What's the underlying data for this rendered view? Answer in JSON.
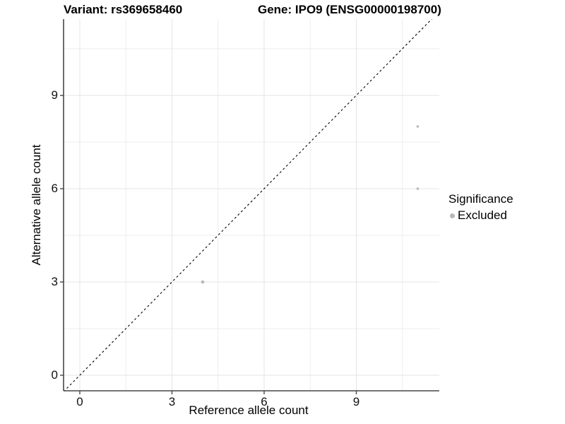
{
  "chart_data": {
    "type": "scatter",
    "title_left": "Variant: rs369658460",
    "title_right": "Gene: IPO9 (ENSG00000198700)",
    "xlabel": "Reference allele count",
    "ylabel": "Alternative allele count",
    "x_ticks": [
      0,
      3,
      6,
      9
    ],
    "y_ticks": [
      0,
      3,
      6,
      9
    ],
    "x_minor_ticks": [
      1.5,
      4.5,
      7.5,
      10.5
    ],
    "y_minor_ticks": [
      1.5,
      4.5,
      7.5,
      10.5
    ],
    "xlim": [
      -0.55,
      11.7
    ],
    "ylim": [
      -0.5,
      11.45
    ],
    "grid": true,
    "identity_line": {
      "slope": 1,
      "intercept": 0,
      "style": "dashed",
      "color": "#000000"
    },
    "points": [
      {
        "x": 4,
        "y": 3,
        "significance": "Excluded",
        "r": 2.3
      },
      {
        "x": 11,
        "y": 8,
        "significance": "Excluded",
        "r": 1.8
      },
      {
        "x": 11,
        "y": 6,
        "significance": "Excluded",
        "r": 1.8
      }
    ],
    "legend": {
      "title": "Significance",
      "position": "right",
      "items": [
        {
          "label": "Excluded",
          "color": "#b8b8b8"
        }
      ]
    },
    "colors": {
      "point": "#b8b8b8",
      "grid_major": "#e4e4e4",
      "grid_minor": "#ededed",
      "axis": "#464646",
      "tick": "#464646"
    }
  }
}
